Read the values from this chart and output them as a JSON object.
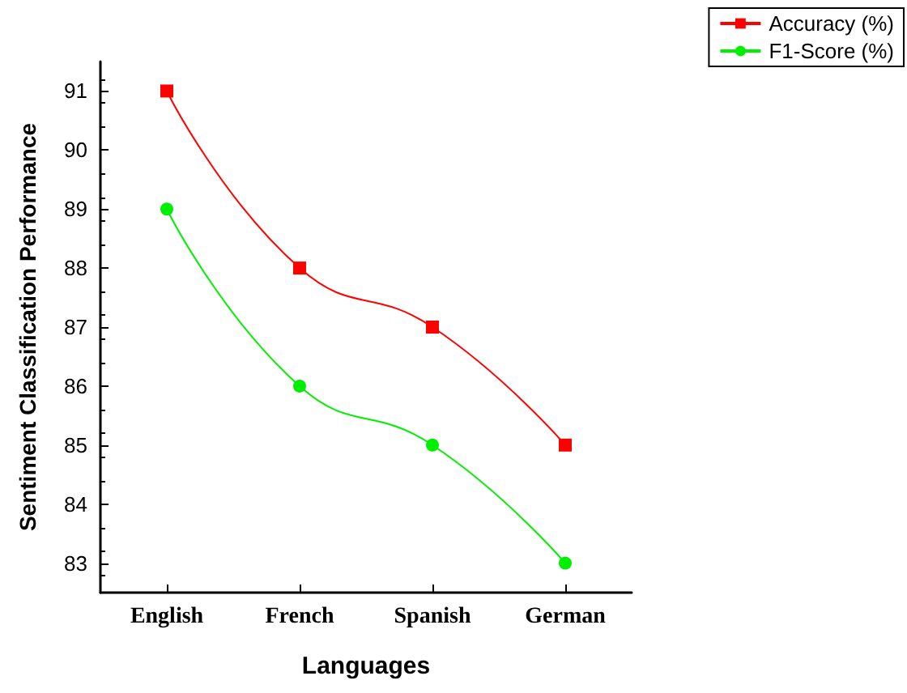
{
  "chart_data": {
    "type": "line",
    "xlabel": "Languages",
    "ylabel": "Sentiment Classification Performance",
    "categories": [
      "English",
      "French",
      "Spanish",
      "German"
    ],
    "series": [
      {
        "name": "Accuracy (%)",
        "color": "#ff0000",
        "values": [
          91,
          88,
          87,
          85
        ],
        "marker": "square"
      },
      {
        "name": "F1-Score (%)",
        "color": "#00ee00",
        "values": [
          89,
          86,
          85,
          83
        ],
        "marker": "circle"
      }
    ],
    "ylim": [
      82.5,
      91.5
    ],
    "yticks": [
      83,
      84,
      85,
      86,
      87,
      88,
      89,
      90,
      91
    ],
    "grid": false,
    "legend": "top right",
    "line_style": "solid"
  }
}
